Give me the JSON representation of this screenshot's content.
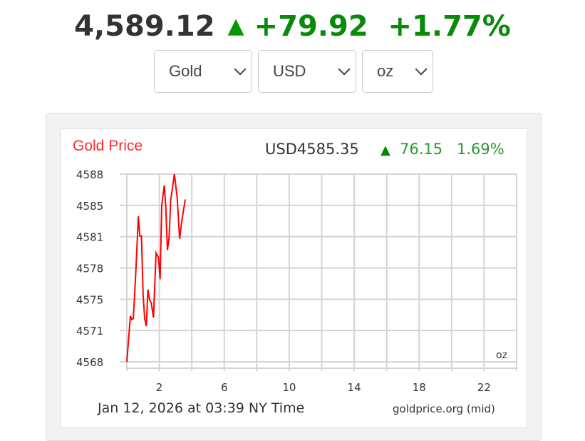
{
  "header": {
    "price": "4,589.12",
    "direction": "up",
    "arrow_icon": "triangle-up-icon",
    "change": "+79.92",
    "change_pct": "+1.77%",
    "up_color": "#008800"
  },
  "selectors": {
    "metal": "Gold",
    "currency": "USD",
    "unit": "oz"
  },
  "chart_data": {
    "type": "line",
    "title": "Gold Price",
    "price_label": "USD4585.35",
    "change": "76.15",
    "change_pct": "1.69%",
    "unit_label": "oz",
    "timestamp": "Jan 12, 2026 at 03:39 NY Time",
    "source": "goldprice.org (mid)",
    "line_color": "#ff0000",
    "grid": true,
    "xlim": [
      0,
      24
    ],
    "ylim": [
      4568,
      4588
    ],
    "x_ticks": [
      "2",
      "6",
      "10",
      "14",
      "18",
      "22"
    ],
    "y_ticks": [
      "4588",
      "4585",
      "4581",
      "4578",
      "4575",
      "4571",
      "4568"
    ],
    "x": [
      0,
      0.22,
      0.3,
      0.4,
      0.55,
      0.71,
      0.8,
      0.9,
      1.0,
      1.1,
      1.2,
      1.3,
      1.4,
      1.5,
      1.64,
      1.8,
      1.95,
      2.05,
      2.15,
      2.31,
      2.4,
      2.5,
      2.6,
      2.7,
      2.93,
      3.1,
      3.25,
      3.4,
      3.6
    ],
    "y": [
      4568.0,
      4572.9,
      4572.5,
      4572.6,
      4577.5,
      4583.5,
      4581.4,
      4581.4,
      4575.2,
      4572.6,
      4571.8,
      4575.7,
      4574.6,
      4574.3,
      4572.7,
      4579.6,
      4579.1,
      4576.8,
      4584.7,
      4586.8,
      4584.5,
      4579.9,
      4581.2,
      4585.2,
      4588.0,
      4585.5,
      4581.1,
      4583.2,
      4585.3
    ]
  }
}
